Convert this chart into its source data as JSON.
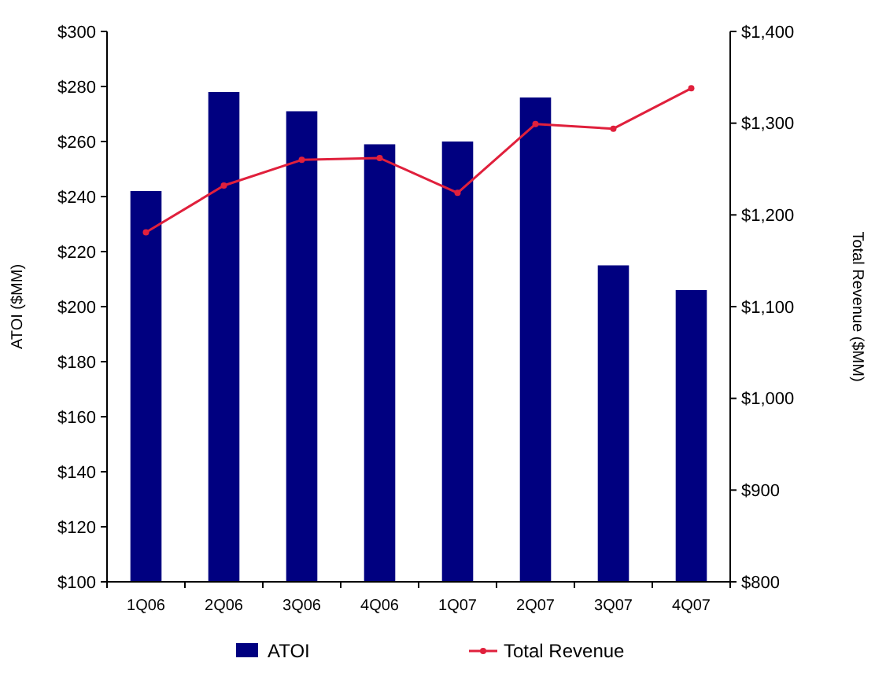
{
  "chart_data": {
    "type": "bar",
    "ylabel": "ATOI ($MM)",
    "y2label": "Total Revenue ($MM)",
    "categories": [
      "1Q06",
      "2Q06",
      "3Q06",
      "4Q06",
      "1Q07",
      "2Q07",
      "3Q07",
      "4Q07"
    ],
    "series": [
      {
        "name": "ATOI",
        "color": "#000080",
        "values": [
          242,
          278,
          271,
          259,
          260,
          276,
          215,
          206
        ]
      },
      {
        "name": "Total Revenue",
        "type": "line",
        "axis": "y2",
        "color": "#e0203c",
        "marker": "circle",
        "values": [
          1181,
          1232,
          1260,
          1262,
          1224,
          1299,
          1294,
          1338
        ]
      }
    ],
    "ylim": [
      100,
      300
    ],
    "yticks": [
      {
        "value": 100,
        "label": "$100"
      },
      {
        "value": 120,
        "label": "$120"
      },
      {
        "value": 140,
        "label": "$140"
      },
      {
        "value": 160,
        "label": "$160"
      },
      {
        "value": 180,
        "label": "$180"
      },
      {
        "value": 200,
        "label": "$200"
      },
      {
        "value": 220,
        "label": "$220"
      },
      {
        "value": 240,
        "label": "$240"
      },
      {
        "value": 260,
        "label": "$260"
      },
      {
        "value": 280,
        "label": "$280"
      },
      {
        "value": 300,
        "label": "$300"
      }
    ],
    "y2lim": [
      800,
      1400
    ],
    "y2ticks": [
      {
        "value": 800,
        "label": "$800"
      },
      {
        "value": 900,
        "label": "$900"
      },
      {
        "value": 1000,
        "label": "$1,000"
      },
      {
        "value": 1100,
        "label": "$1,100"
      },
      {
        "value": 1200,
        "label": "$1,200"
      },
      {
        "value": 1300,
        "label": "$1,300"
      },
      {
        "value": 1400,
        "label": "$1,400"
      }
    ],
    "legend": "bottom",
    "grid": false
  }
}
